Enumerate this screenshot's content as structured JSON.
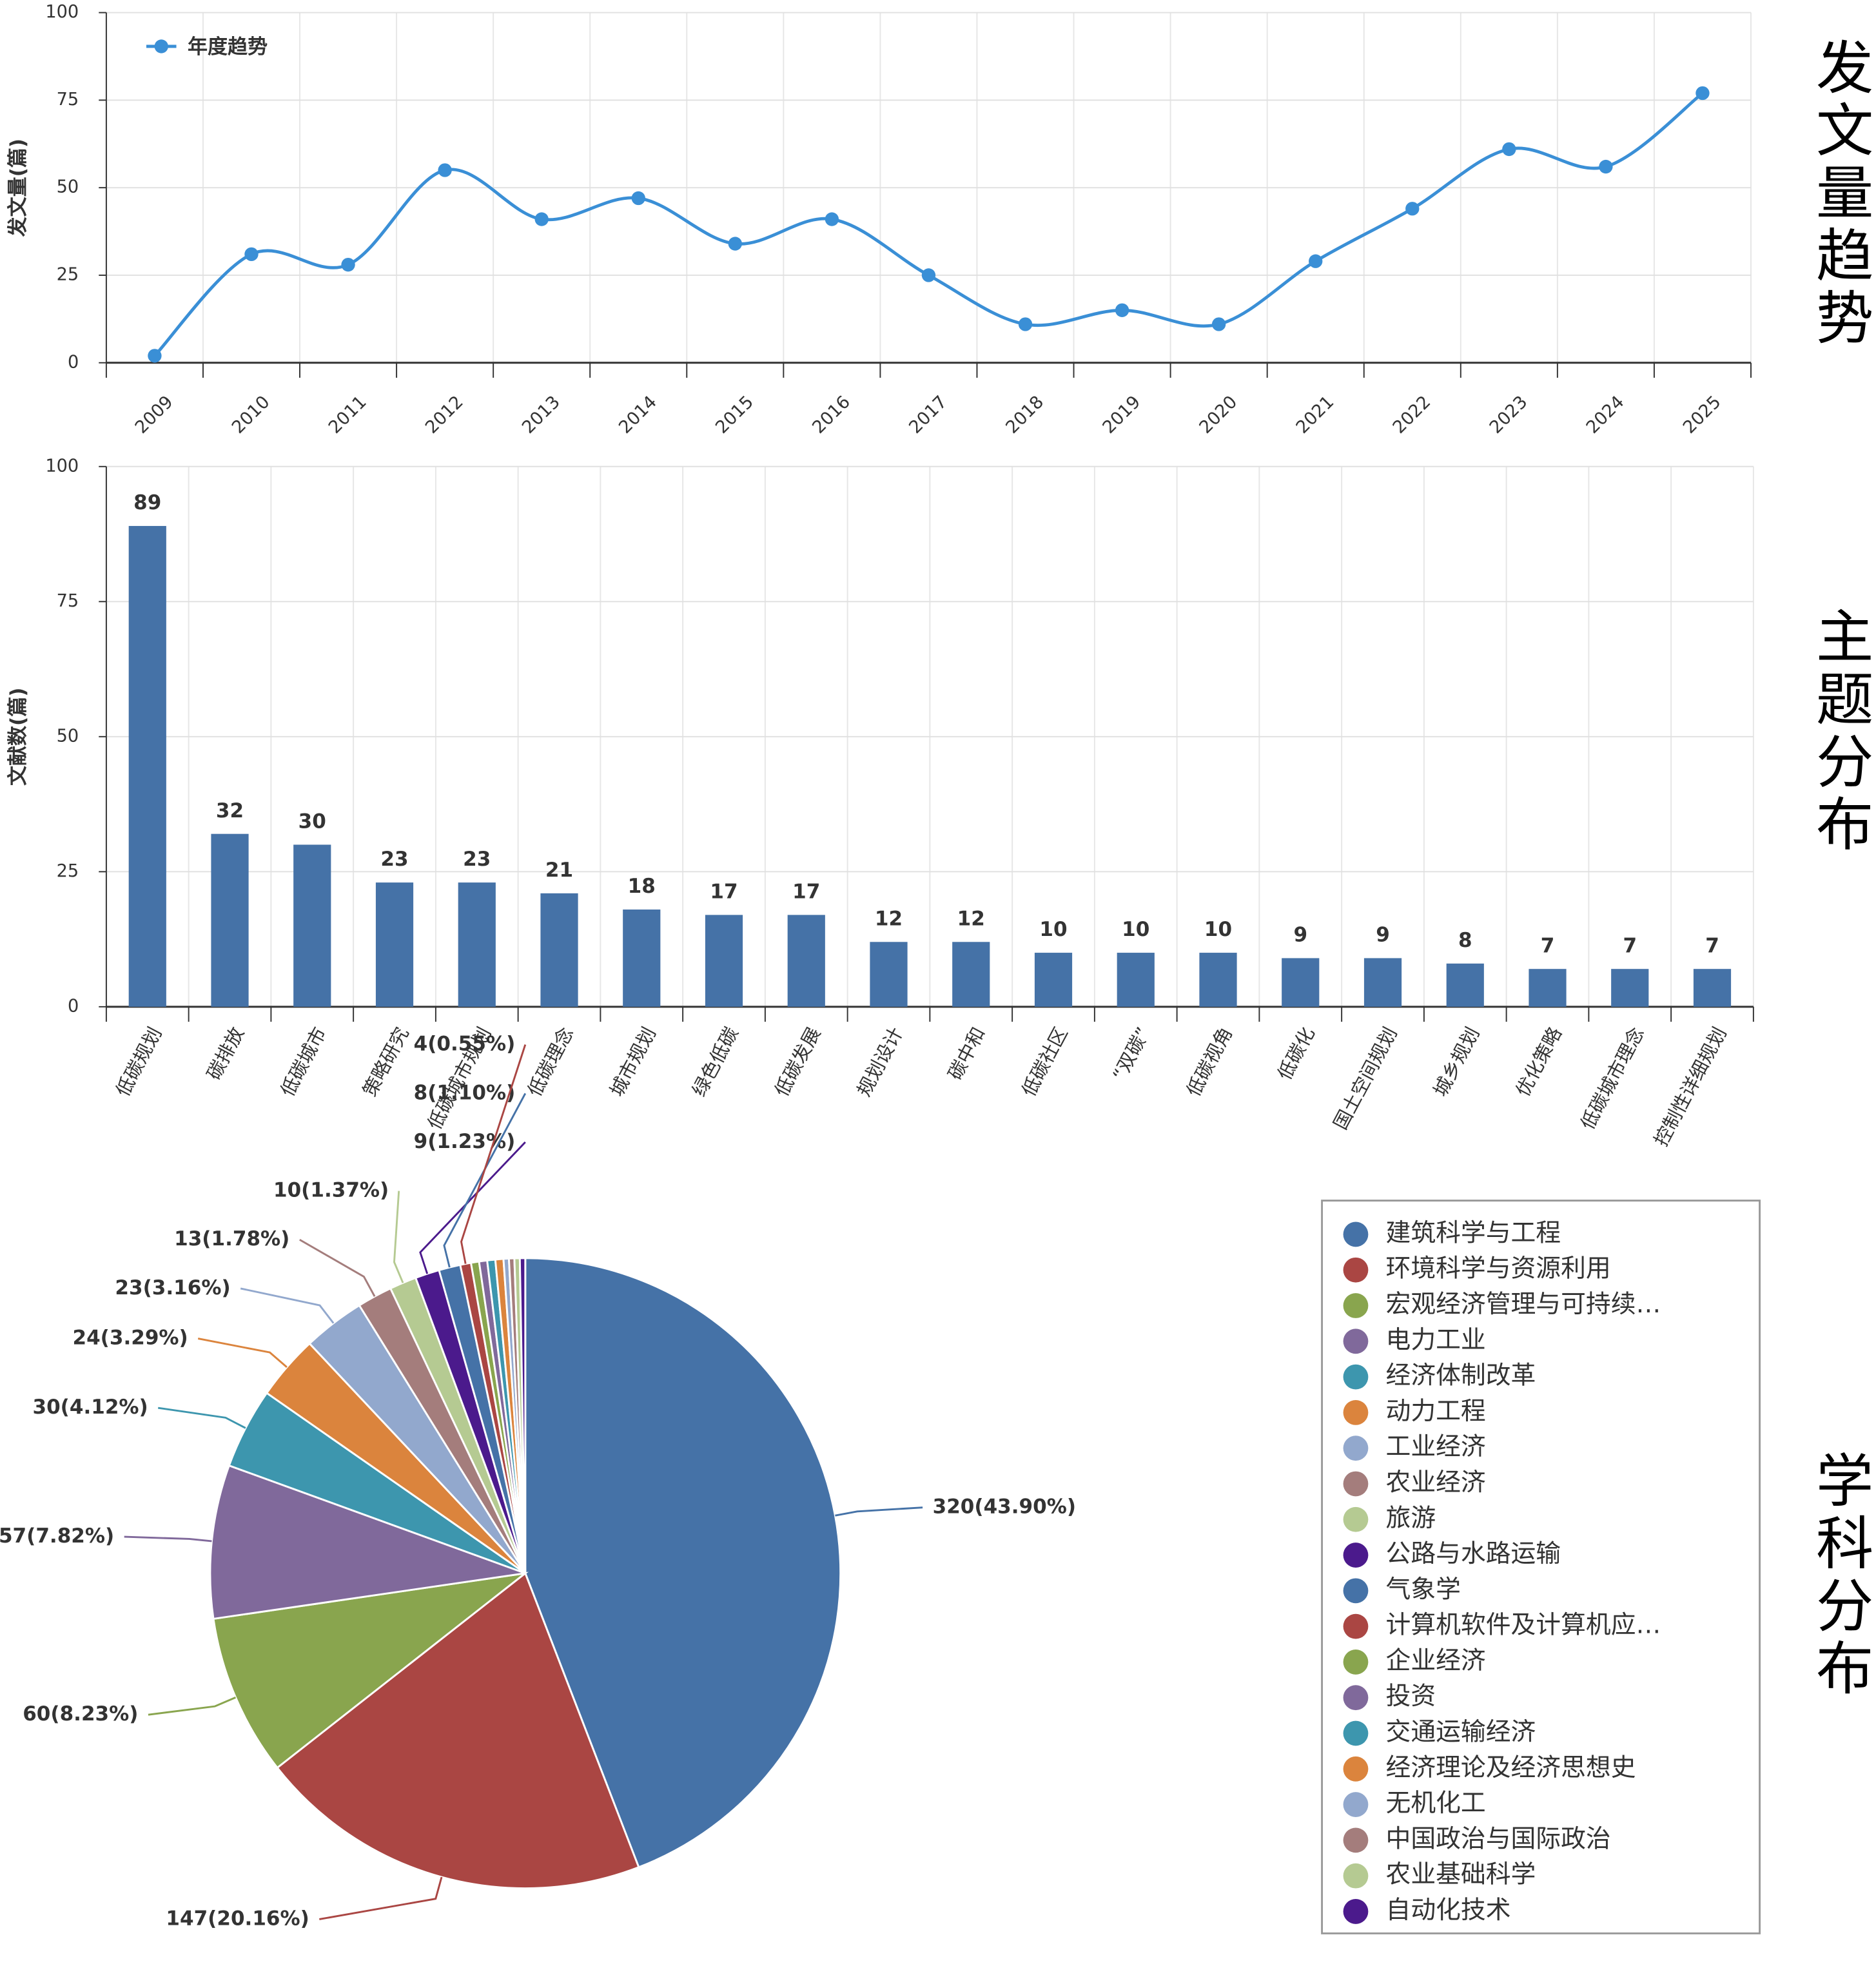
{
  "chart_data": [
    {
      "type": "line",
      "section_label": "发文量趋势",
      "ylabel": "发文量(篇)",
      "categories": [
        "2009",
        "2010",
        "2011",
        "2012",
        "2013",
        "2014",
        "2015",
        "2016",
        "2017",
        "2018",
        "2019",
        "2020",
        "2021",
        "2022",
        "2023",
        "2024",
        "2025"
      ],
      "series": [
        {
          "name": "年度趋势",
          "color": "#3a8fd6",
          "values": [
            2,
            31,
            28,
            55,
            41,
            47,
            34,
            41,
            25,
            11,
            15,
            11,
            29,
            44,
            61,
            56,
            77
          ]
        }
      ],
      "ylim": [
        0,
        100
      ],
      "yticks": [
        0,
        25,
        50,
        75,
        100
      ],
      "grid": true
    },
    {
      "type": "bar",
      "section_label": "主题分布",
      "ylabel": "文献数(篇)",
      "categories": [
        "低碳规划",
        "碳排放",
        "低碳城市",
        "策略研究",
        "低碳城市规划",
        "低碳理念",
        "城市规划",
        "绿色低碳",
        "低碳发展",
        "规划设计",
        "碳中和",
        "低碳社区",
        "“双碳”",
        "低碳视角",
        "低碳化",
        "国土空间规划",
        "城乡规划",
        "优化策略",
        "低碳城市理念",
        "控制性详细规划"
      ],
      "values": [
        89,
        32,
        30,
        23,
        23,
        21,
        18,
        17,
        17,
        12,
        12,
        10,
        10,
        10,
        9,
        9,
        8,
        7,
        7,
        7
      ],
      "color": "#4572a7",
      "ylim": [
        0,
        100
      ],
      "yticks": [
        0,
        25,
        50,
        75,
        100
      ],
      "grid": true
    },
    {
      "type": "pie",
      "section_label": "学科分布",
      "categories": [
        "建筑科学与工程",
        "环境科学与资源利用",
        "宏观经济管理与可持续…",
        "电力工业",
        "经济体制改革",
        "动力工程",
        "工业经济",
        "农业经济",
        "旅游",
        "公路与水路运输",
        "气象学",
        "计算机软件及计算机应…",
        "企业经济",
        "投资",
        "交通运输经济",
        "经济理论及经济思想史",
        "无机化工",
        "中国政治与国际政治",
        "农业基础科学",
        "自动化技术"
      ],
      "values": [
        320,
        147,
        60,
        57,
        30,
        24,
        23,
        13,
        10,
        9,
        8,
        4,
        3,
        3,
        3,
        3,
        2,
        2,
        2,
        2
      ],
      "value_labels": [
        "320(43.90%)",
        "147(20.16%)",
        "60(8.23%)",
        "57(7.82%)",
        "30(4.12%)",
        "24(3.29%)",
        "23(3.16%)",
        "13(1.78%)",
        "10(1.37%)",
        "9(1.23%)",
        "8(1.10%)",
        "4(0.55%)",
        null,
        null,
        null,
        null,
        null,
        null,
        null,
        null
      ],
      "colors": [
        "#4572a7",
        "#aa4643",
        "#89a54e",
        "#80699b",
        "#3d96ae",
        "#db843d",
        "#92a8cd",
        "#a47d7c",
        "#b5ca92",
        "#4b1a8c",
        "#4572a7",
        "#aa4643",
        "#89a54e",
        "#80699b",
        "#3d96ae",
        "#db843d",
        "#92a8cd",
        "#a47d7c",
        "#b5ca92",
        "#4b1a8c"
      ],
      "legend": "right"
    }
  ]
}
